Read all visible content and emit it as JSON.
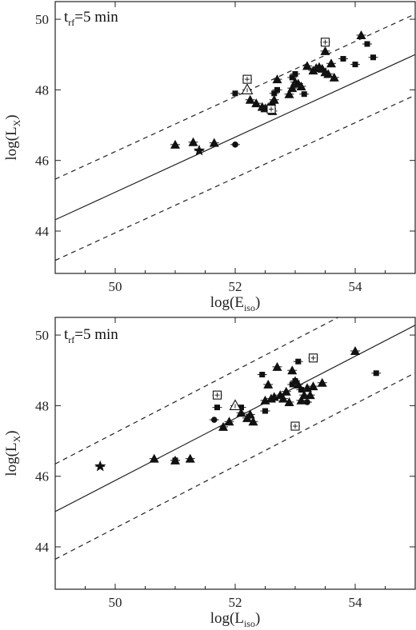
{
  "chart_data": [
    {
      "type": "scatter",
      "annotation_main": "t",
      "annotation_sub": "rf",
      "annotation_rest": "=5 min",
      "xlabel_main": "log(E",
      "xlabel_sub": "iso",
      "xlabel_close": ")",
      "ylabel_main": "log(L",
      "ylabel_sub": "X",
      "ylabel_close": ")",
      "xlim": [
        49,
        55
      ],
      "ylim": [
        42.8,
        50.5
      ],
      "xticks": [
        50,
        52,
        54
      ],
      "yticks": [
        44,
        46,
        48,
        50
      ],
      "grid": false,
      "fit_line": {
        "slope": 0.78,
        "intercept": 6.1
      },
      "band_offset": 1.15,
      "series": [
        {
          "marker": "triangle",
          "points": [
            [
              51.0,
              46.45
            ],
            [
              51.3,
              46.52
            ],
            [
              51.65,
              46.5
            ],
            [
              52.25,
              47.72
            ],
            [
              52.35,
              47.62
            ],
            [
              52.45,
              47.52
            ],
            [
              52.5,
              47.48
            ],
            [
              52.55,
              47.5
            ],
            [
              52.6,
              47.58
            ],
            [
              52.62,
              47.4
            ],
            [
              52.65,
              47.72
            ],
            [
              52.7,
              48.3
            ],
            [
              52.9,
              47.88
            ],
            [
              52.95,
              48.05
            ],
            [
              53.0,
              48.22
            ],
            [
              53.05,
              48.18
            ],
            [
              53.1,
              48.1
            ],
            [
              53.2,
              48.68
            ],
            [
              53.3,
              48.55
            ],
            [
              53.35,
              48.62
            ],
            [
              53.4,
              48.65
            ],
            [
              53.45,
              48.6
            ],
            [
              53.5,
              48.5
            ],
            [
              53.5,
              49.1
            ],
            [
              53.55,
              48.45
            ],
            [
              53.6,
              48.75
            ],
            [
              53.65,
              48.35
            ],
            [
              54.1,
              49.55
            ]
          ]
        },
        {
          "marker": "square",
          "points": [
            [
              52.0,
              47.9
            ],
            [
              52.65,
              47.9
            ],
            [
              52.7,
              48.0
            ],
            [
              52.95,
              48.35
            ],
            [
              53.0,
              48.45
            ],
            [
              53.15,
              47.88
            ],
            [
              53.8,
              48.88
            ],
            [
              54.0,
              48.72
            ],
            [
              54.2,
              49.3
            ],
            [
              54.3,
              48.92
            ]
          ]
        },
        {
          "marker": "circle",
          "points": [
            [
              52.0,
              46.45
            ],
            [
              52.62,
              47.62
            ]
          ]
        },
        {
          "marker": "star",
          "points": [
            [
              51.4,
              46.28
            ]
          ]
        },
        {
          "marker": "open-square",
          "points": [
            [
              52.2,
              48.3
            ],
            [
              53.5,
              49.35
            ],
            [
              52.6,
              47.45
            ]
          ]
        },
        {
          "marker": "open-triangle",
          "points": [
            [
              52.2,
              48.0
            ]
          ]
        }
      ]
    },
    {
      "type": "scatter",
      "annotation_main": "t",
      "annotation_sub": "rf",
      "annotation_rest": "=5 min",
      "xlabel_main": "log(L",
      "xlabel_sub": "iso",
      "xlabel_close": ")",
      "ylabel_main": "log(L",
      "ylabel_sub": "X",
      "ylabel_close": ")",
      "xlim": [
        49,
        55
      ],
      "ylim": [
        42.8,
        50.5
      ],
      "xticks": [
        50,
        52,
        54
      ],
      "yticks": [
        44,
        46,
        48,
        50
      ],
      "grid": false,
      "fit_line": {
        "slope": 0.88,
        "intercept": 1.88
      },
      "band_offset": 1.35,
      "series": [
        {
          "marker": "triangle",
          "points": [
            [
              50.65,
              46.5
            ],
            [
              51.0,
              46.45
            ],
            [
              51.25,
              46.5
            ],
            [
              51.8,
              47.4
            ],
            [
              51.9,
              47.55
            ],
            [
              52.1,
              47.8
            ],
            [
              52.2,
              47.65
            ],
            [
              52.25,
              47.75
            ],
            [
              52.3,
              47.55
            ],
            [
              52.5,
              48.15
            ],
            [
              52.55,
              48.6
            ],
            [
              52.6,
              48.2
            ],
            [
              52.65,
              48.25
            ],
            [
              52.7,
              49.1
            ],
            [
              52.75,
              48.3
            ],
            [
              52.8,
              48.2
            ],
            [
              52.85,
              48.4
            ],
            [
              52.9,
              48.1
            ],
            [
              52.95,
              49.0
            ],
            [
              53.0,
              48.7
            ],
            [
              53.05,
              48.6
            ],
            [
              53.1,
              48.15
            ],
            [
              53.15,
              48.3
            ],
            [
              53.2,
              48.5
            ],
            [
              53.25,
              48.3
            ],
            [
              53.3,
              48.55
            ],
            [
              53.45,
              48.65
            ],
            [
              54.0,
              49.55
            ]
          ]
        },
        {
          "marker": "square",
          "points": [
            [
              51.0,
              46.45
            ],
            [
              51.7,
              47.95
            ],
            [
              52.1,
              47.95
            ],
            [
              52.45,
              48.88
            ],
            [
              52.5,
              47.85
            ],
            [
              52.95,
              48.6
            ],
            [
              53.0,
              48.7
            ],
            [
              53.05,
              49.25
            ],
            [
              53.1,
              48.45
            ],
            [
              54.35,
              48.92
            ]
          ]
        },
        {
          "marker": "circle",
          "points": [
            [
              51.65,
              47.6
            ],
            [
              53.2,
              48.1
            ]
          ]
        },
        {
          "marker": "star",
          "points": [
            [
              49.75,
              46.28
            ]
          ]
        },
        {
          "marker": "open-square",
          "points": [
            [
              51.7,
              48.3
            ],
            [
              53.3,
              49.35
            ],
            [
              53.0,
              47.42
            ]
          ]
        },
        {
          "marker": "open-triangle",
          "points": [
            [
              52.0,
              48.0
            ]
          ]
        }
      ]
    }
  ]
}
